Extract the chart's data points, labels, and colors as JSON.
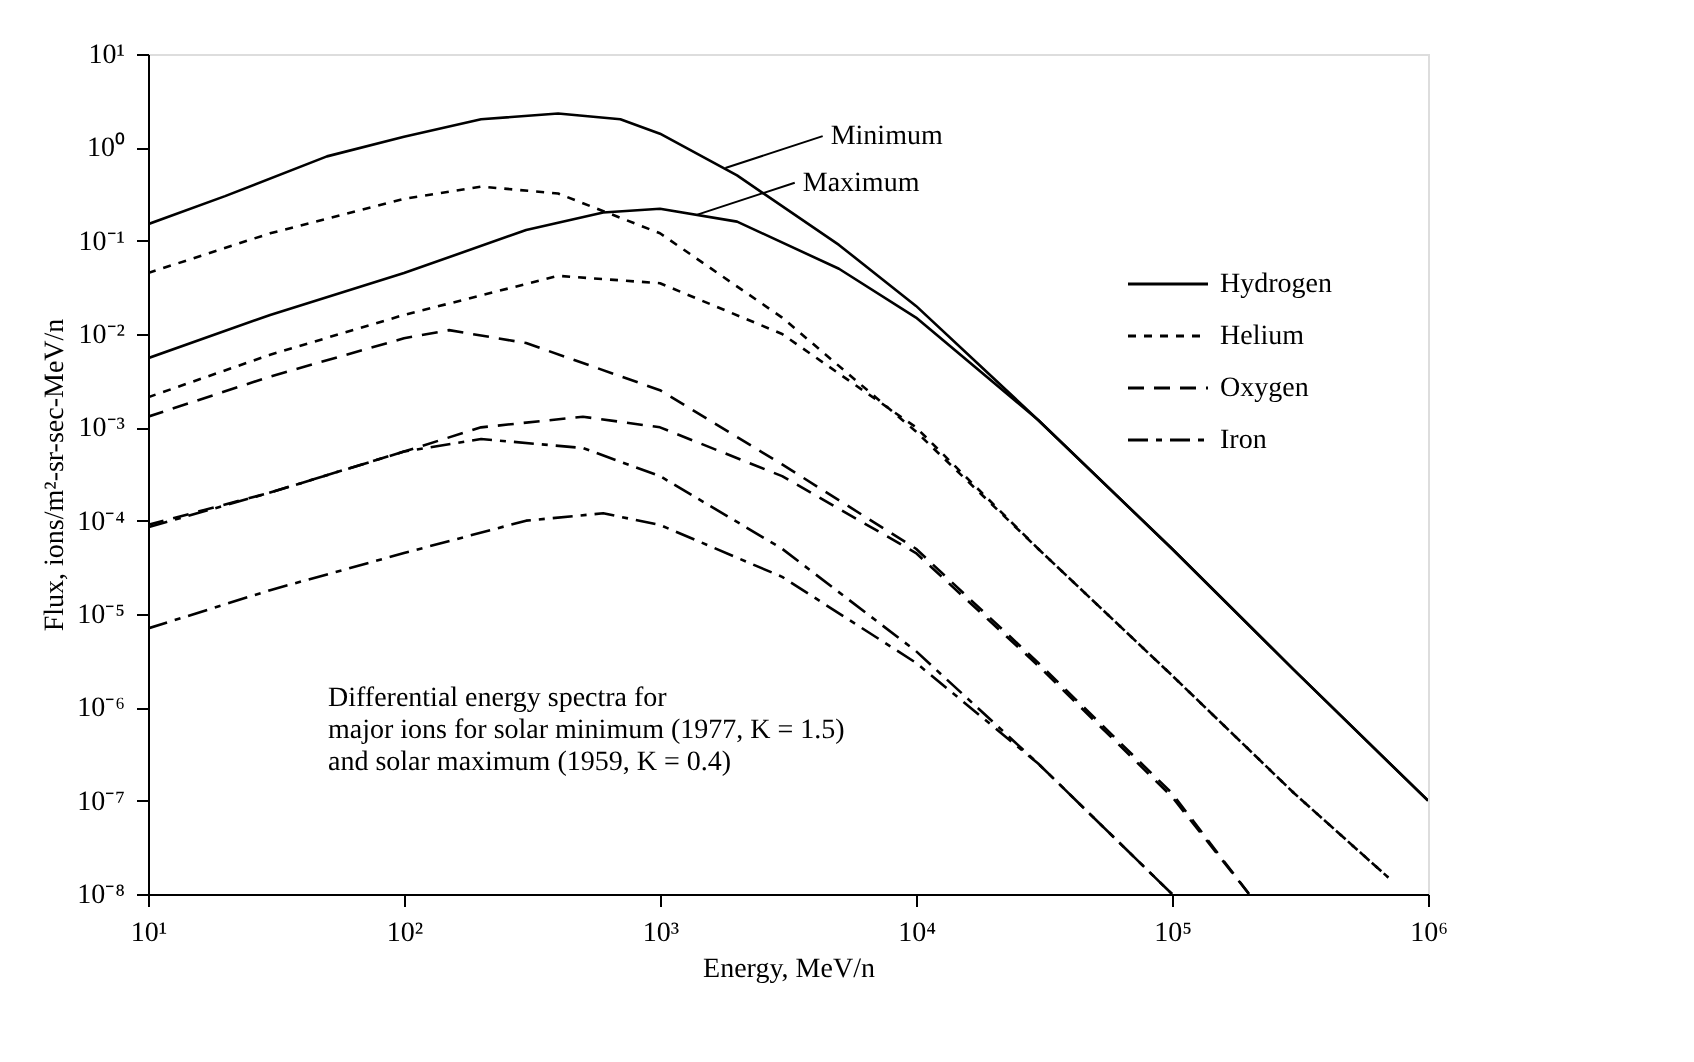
{
  "chart_data": {
    "type": "line",
    "xlabel": "Energy, MeV/n",
    "ylabel": "Flux, ions/m²-sr-sec-MeV/n",
    "log": "xy",
    "grid": false,
    "legend": "top right",
    "marker": "none",
    "xlim": [
      10,
      1000000
    ],
    "ylim": [
      1e-08,
      10
    ],
    "xticks": [
      {
        "value": 10,
        "label": "10¹"
      },
      {
        "value": 100,
        "label": "10²"
      },
      {
        "value": 1000,
        "label": "10³"
      },
      {
        "value": 10000,
        "label": "10⁴"
      },
      {
        "value": 100000,
        "label": "10⁵"
      },
      {
        "value": 1000000,
        "label": "10⁶"
      }
    ],
    "yticks": [
      {
        "value": 1e-08,
        "label": "10⁻⁸"
      },
      {
        "value": 1e-07,
        "label": "10⁻⁷"
      },
      {
        "value": 1e-06,
        "label": "10⁻⁶"
      },
      {
        "value": 1e-05,
        "label": "10⁻⁵"
      },
      {
        "value": 0.0001,
        "label": "10⁻⁴"
      },
      {
        "value": 0.001,
        "label": "10⁻³"
      },
      {
        "value": 0.01,
        "label": "10⁻²"
      },
      {
        "value": 0.1,
        "label": "10⁻¹"
      },
      {
        "value": 1,
        "label": "10⁰"
      },
      {
        "value": 10,
        "label": "10¹"
      }
    ],
    "series": [
      {
        "name": "Hydrogen",
        "color": "#000000",
        "line_style": "solid",
        "x": [
          10,
          20,
          50,
          100,
          200,
          400,
          700,
          1000,
          2000,
          5000,
          10000,
          30000,
          100000,
          300000,
          1000000
        ],
        "values": [
          0.15,
          0.3,
          0.8,
          1.3,
          2.0,
          2.3,
          2.0,
          1.4,
          0.5,
          0.09,
          0.02,
          0.0012,
          5e-05,
          2.5e-06,
          1e-07
        ]
      },
      {
        "color": "#000000",
        "line_style": "solid",
        "x": [
          10,
          30,
          100,
          300,
          600,
          1000,
          2000,
          5000,
          10000,
          30000,
          100000,
          300000,
          1000000
        ],
        "values": [
          0.0055,
          0.016,
          0.045,
          0.13,
          0.2,
          0.22,
          0.16,
          0.05,
          0.015,
          0.0012,
          5e-05,
          2.5e-06,
          1e-07
        ]
      },
      {
        "name": "Helium",
        "color": "#000000",
        "line_style": "dotted",
        "x": [
          10,
          30,
          100,
          200,
          400,
          1000,
          3000,
          10000,
          30000,
          100000,
          300000,
          700000
        ],
        "values": [
          0.045,
          0.12,
          0.28,
          0.38,
          0.32,
          0.12,
          0.015,
          0.0009,
          5e-05,
          2.2e-06,
          1.2e-07,
          1.5e-08
        ]
      },
      {
        "color": "#000000",
        "line_style": "dotted",
        "x": [
          10,
          30,
          100,
          400,
          1000,
          3000,
          10000,
          30000,
          100000,
          300000,
          700000
        ],
        "values": [
          0.0021,
          0.006,
          0.016,
          0.042,
          0.035,
          0.01,
          0.001,
          5e-05,
          2.2e-06,
          1.2e-07,
          1.5e-08
        ]
      },
      {
        "name": "Oxygen",
        "color": "#000000",
        "line_style": "dashed",
        "x": [
          10,
          30,
          100,
          150,
          300,
          1000,
          3000,
          10000,
          30000,
          100000,
          200000
        ],
        "values": [
          0.0013,
          0.0035,
          0.009,
          0.011,
          0.008,
          0.0025,
          0.0004,
          5e-05,
          3e-06,
          1.2e-07,
          1e-08
        ]
      },
      {
        "color": "#000000",
        "line_style": "dashed",
        "x": [
          10,
          30,
          100,
          200,
          500,
          1000,
          3000,
          10000,
          30000,
          100000,
          200000
        ],
        "values": [
          9e-05,
          0.0002,
          0.00055,
          0.001,
          0.0013,
          0.001,
          0.0003,
          4.5e-05,
          2.8e-06,
          1.1e-07,
          1e-08
        ]
      },
      {
        "name": "Iron",
        "color": "#000000",
        "line_style": "dashdot",
        "x": [
          10,
          30,
          100,
          200,
          500,
          1000,
          3000,
          10000,
          30000,
          100000
        ],
        "values": [
          8.5e-05,
          0.0002,
          0.00055,
          0.00075,
          0.0006,
          0.0003,
          5e-05,
          4e-06,
          2.5e-07,
          1e-08
        ]
      },
      {
        "color": "#000000",
        "line_style": "dashdot",
        "x": [
          10,
          30,
          100,
          300,
          600,
          1000,
          3000,
          10000,
          30000,
          100000
        ],
        "values": [
          7e-06,
          1.8e-05,
          4.5e-05,
          0.0001,
          0.00012,
          9e-05,
          2.5e-05,
          3e-06,
          2.5e-07,
          1e-08
        ]
      }
    ],
    "annotations": [
      {
        "text": "Minimum",
        "x": 1800,
        "y": 0.6
      },
      {
        "text": "Maximum",
        "x": 1400,
        "y": 0.19
      },
      "Differential energy spectra for\nmajor ions for solar minimum (1977, K = 1.5)\nand solar maximum (1959, K = 0.4)"
    ]
  }
}
